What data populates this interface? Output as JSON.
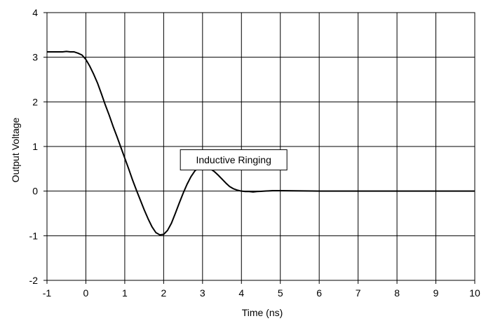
{
  "chart_data": {
    "type": "line",
    "title": "",
    "xlabel": "Time (ns)",
    "ylabel": "Output Voltage",
    "xlim": [
      -1,
      10
    ],
    "ylim": [
      -2,
      4
    ],
    "x_ticks": [
      "-1",
      "0",
      "1",
      "2",
      "3",
      "4",
      "5",
      "6",
      "7",
      "8",
      "9",
      "10"
    ],
    "y_ticks": [
      "-2",
      "-1",
      "0",
      "1",
      "2",
      "3",
      "4"
    ],
    "grid": true,
    "line_color": "#000000",
    "grid_color": "#000000",
    "annotation": {
      "text": "Inductive Ringing",
      "x": 3.8,
      "y": 0.7
    },
    "series": [
      {
        "x": [
          -1.0,
          -0.8,
          -0.6,
          -0.5,
          -0.4,
          -0.3,
          -0.2,
          -0.1,
          0.0,
          0.1,
          0.2,
          0.3,
          0.4,
          0.5,
          0.6,
          0.7,
          0.8,
          0.9,
          1.0,
          1.1,
          1.2,
          1.3,
          1.4,
          1.5,
          1.6,
          1.7,
          1.8,
          1.9,
          2.0,
          2.1,
          2.2,
          2.3,
          2.4,
          2.5,
          2.6,
          2.7,
          2.8,
          2.9,
          3.0,
          3.1,
          3.2,
          3.3,
          3.4,
          3.5,
          3.6,
          3.7,
          3.8,
          3.9,
          4.0,
          4.1,
          4.2,
          4.3,
          4.4,
          4.5,
          4.6,
          4.8,
          5.0,
          6.0,
          7.0,
          8.0,
          9.0,
          10.0
        ],
        "y": [
          3.12,
          3.12,
          3.12,
          3.13,
          3.12,
          3.12,
          3.09,
          3.05,
          2.95,
          2.8,
          2.62,
          2.42,
          2.18,
          1.93,
          1.7,
          1.45,
          1.22,
          0.98,
          0.74,
          0.5,
          0.25,
          0.02,
          -0.2,
          -0.42,
          -0.62,
          -0.8,
          -0.93,
          -0.98,
          -0.97,
          -0.88,
          -0.72,
          -0.5,
          -0.27,
          -0.05,
          0.15,
          0.32,
          0.45,
          0.53,
          0.55,
          0.54,
          0.5,
          0.44,
          0.36,
          0.27,
          0.18,
          0.1,
          0.05,
          0.02,
          0.0,
          -0.01,
          -0.01,
          -0.02,
          -0.01,
          -0.005,
          0.0,
          0.01,
          0.01,
          0.0,
          0.0,
          0.0,
          0.0,
          0.0
        ]
      }
    ]
  }
}
